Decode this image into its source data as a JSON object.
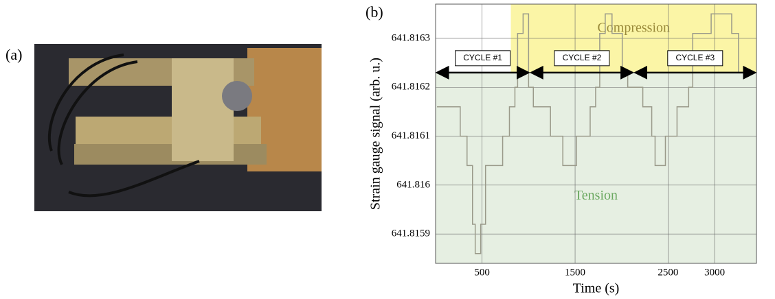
{
  "panel_labels": [
    "(a)",
    "(b)"
  ],
  "chart_data": {
    "type": "line",
    "x_label": "Time (s)",
    "y_label": "Strain gauge signal (arb. u.)",
    "x": [
      15,
      265,
      265,
      338,
      338,
      397,
      397,
      426,
      426,
      485,
      485,
      537,
      537,
      721,
      721,
      794,
      794,
      853,
      853,
      882,
      882,
      941,
      941,
      1000,
      1000,
      1051,
      1051,
      1235,
      1235,
      1368,
      1368,
      1515,
      1515,
      1662,
      1662,
      1721,
      1721,
      1765,
      1765,
      1824,
      1824,
      1897,
      1897,
      2007,
      2007,
      2066,
      2066,
      2228,
      2228,
      2324,
      2324,
      2360,
      2360,
      2471,
      2471,
      2596,
      2596,
      2721,
      2721,
      2765,
      2765,
      2963,
      2963,
      3184,
      3184,
      3257,
      3257,
      3449
    ],
    "values": [
      641.81616,
      641.81616,
      641.8161,
      641.8161,
      641.81604,
      641.81604,
      641.81592,
      641.81592,
      641.81586,
      641.81586,
      641.81592,
      641.81592,
      641.81604,
      641.81604,
      641.8161,
      641.8161,
      641.81616,
      641.81616,
      641.8162,
      641.8162,
      641.81631,
      641.81631,
      641.81635,
      641.81635,
      641.8162,
      641.8162,
      641.81616,
      641.81616,
      641.8161,
      641.8161,
      641.81604,
      641.81604,
      641.8161,
      641.8161,
      641.81616,
      641.81616,
      641.8162,
      641.8162,
      641.81631,
      641.81631,
      641.81635,
      641.81635,
      641.81631,
      641.81631,
      641.81623,
      641.81623,
      641.8162,
      641.8162,
      641.81616,
      641.81616,
      641.8161,
      641.8161,
      641.81604,
      641.81604,
      641.8161,
      641.8161,
      641.81616,
      641.81616,
      641.8162,
      641.8162,
      641.81631,
      641.81631,
      641.81635,
      641.81635,
      641.81631,
      641.81631,
      641.81623,
      641.81623
    ],
    "color": "#9a9a8a",
    "xlim": [
      0,
      3450
    ],
    "ylim": [
      641.81584,
      641.81637
    ],
    "xticks": [
      500,
      1500,
      2500,
      3000
    ],
    "yticks": [
      641.8159,
      641.816,
      641.8161,
      641.8162,
      641.8163
    ],
    "grid": true,
    "regions": [
      {
        "label": "Compression",
        "color": "#fbf5a6",
        "label_color": "#9a8a3a",
        "xlim": [
          809,
          3450
        ],
        "ylim": [
          641.81623,
          641.81637
        ]
      },
      {
        "label": "Tension",
        "color": "#e6efe2",
        "label_color": "#6aa860",
        "xlim": [
          0,
          3450
        ],
        "ylim": [
          641.81584,
          641.81623
        ]
      }
    ],
    "annotations": [
      {
        "text": "CYCLE #1",
        "x": [
          0,
          1014
        ],
        "y": 641.81623
      },
      {
        "text": "CYCLE #2",
        "x": [
          1014,
          2132
        ],
        "y": 641.81623
      },
      {
        "text": "CYCLE #3",
        "x": [
          2132,
          3450
        ],
        "y": 641.81623
      }
    ]
  }
}
